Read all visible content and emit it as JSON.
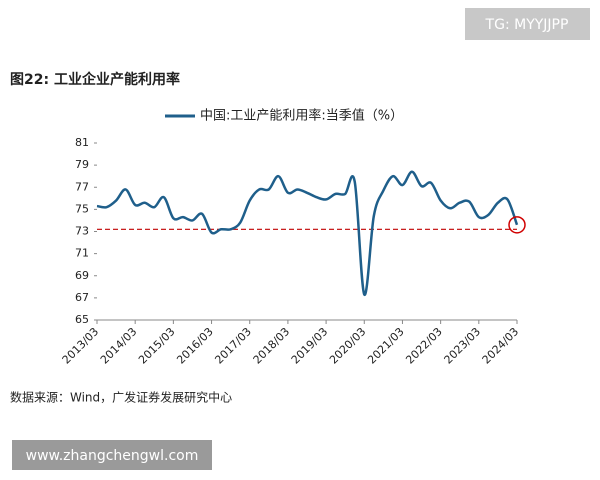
{
  "header": {
    "badge": "TG: MYYJJPP"
  },
  "chart_data": {
    "type": "line",
    "title": "图22: 工业企业产能利用率",
    "categories": [
      "2013/03",
      null,
      null,
      null,
      "2014/03",
      null,
      null,
      null,
      "2015/03",
      null,
      null,
      null,
      "2016/03",
      null,
      null,
      null,
      "2017/03",
      null,
      null,
      null,
      "2018/03",
      null,
      null,
      null,
      "2019/03",
      null,
      null,
      null,
      "2020/03",
      null,
      null,
      null,
      "2021/03",
      null,
      null,
      null,
      "2022/03",
      null,
      null,
      null,
      "2023/03",
      null,
      null,
      null,
      "2024/03"
    ],
    "series": [
      {
        "name": "中国:工业产能利用率:当季值（%）",
        "color": "#1f5f8b",
        "values": [
          75.3,
          75.2,
          75.8,
          76.8,
          75.4,
          75.6,
          75.2,
          76.1,
          74.2,
          74.3,
          74.0,
          74.6,
          72.9,
          73.2,
          73.2,
          73.8,
          75.8,
          76.8,
          76.8,
          78.0,
          76.5,
          76.8,
          76.5,
          76.1,
          75.9,
          76.4,
          76.4,
          77.5,
          67.3,
          74.4,
          76.7,
          78.0,
          77.2,
          78.4,
          77.1,
          77.4,
          75.8,
          75.1,
          75.6,
          75.7,
          74.3,
          74.5,
          75.6,
          75.9,
          73.6
        ]
      }
    ],
    "ylim": [
      65,
      81
    ],
    "yticks": [
      65,
      67,
      69,
      71,
      73,
      75,
      77,
      79,
      81
    ],
    "reference_line": {
      "value": 73.2,
      "color": "#c00000"
    },
    "highlight": {
      "index": 44,
      "color": "#d00000"
    }
  },
  "footer": {
    "source": "数据来源：Wind，广发证券发展研究中心",
    "watermark": "www.zhangchengwl.com"
  }
}
